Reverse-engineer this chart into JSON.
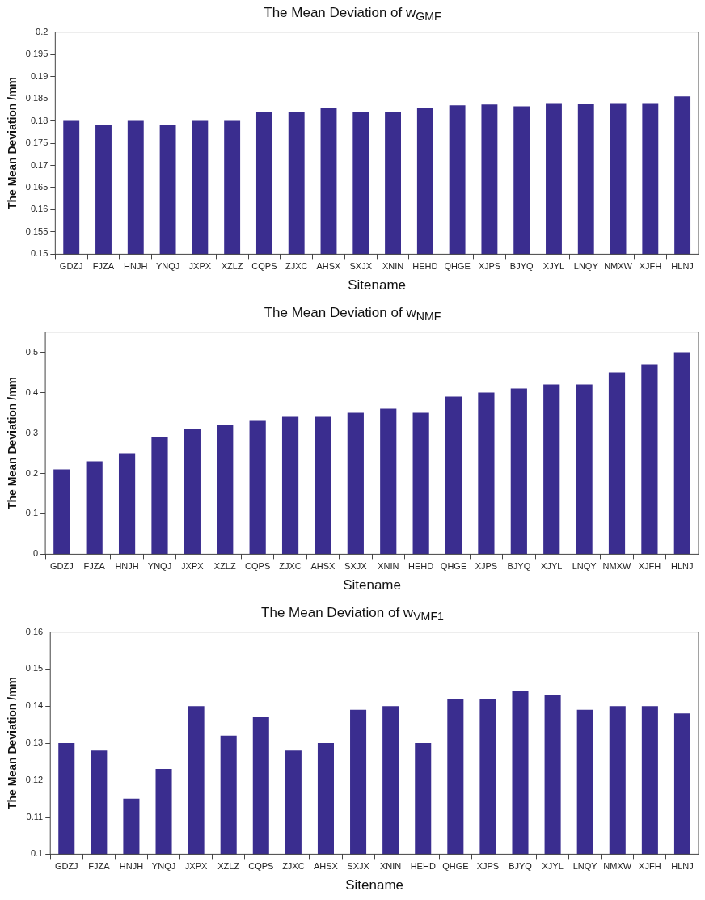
{
  "chart_data": [
    {
      "type": "bar",
      "title": "The Mean Deviation of w$_{GMF}$",
      "xlabel": "Sitename",
      "ylabel": "The Mean Deviation /mm",
      "categories": [
        "GDZJ",
        "FJZA",
        "HNJH",
        "YNQJ",
        "JXPX",
        "XZLZ",
        "CQPS",
        "ZJXC",
        "AHSX",
        "SXJX",
        "XNIN",
        "HEHD",
        "QHGE",
        "XJPS",
        "BJYQ",
        "XJYL",
        "LNQY",
        "NMXW",
        "XJFH",
        "HLNJ"
      ],
      "color": "#3a2d8f",
      "values": [
        0.18,
        0.179,
        0.18,
        0.179,
        0.18,
        0.18,
        0.182,
        0.182,
        0.183,
        0.182,
        0.182,
        0.183,
        0.1835,
        0.1837,
        0.1833,
        0.184,
        0.1838,
        0.184,
        0.184,
        0.1855
      ],
      "ylim": [
        0.15,
        0.2
      ],
      "yticks": [
        {
          "value": 0.15,
          "label": "0.15"
        },
        {
          "value": 0.155,
          "label": "0.155"
        },
        {
          "value": 0.16,
          "label": "0.16"
        },
        {
          "value": 0.165,
          "label": "0.165"
        },
        {
          "value": 0.17,
          "label": "0.17"
        },
        {
          "value": 0.175,
          "label": "0.175"
        },
        {
          "value": 0.18,
          "label": "0.18"
        },
        {
          "value": 0.185,
          "label": "0.185"
        },
        {
          "value": 0.19,
          "label": "0.19"
        },
        {
          "value": 0.195,
          "label": "0.195"
        },
        {
          "value": 0.2,
          "label": "0.2"
        }
      ],
      "grid": false
    },
    {
      "type": "bar",
      "title": "The Mean Deviation of w$_{NMF}$",
      "xlabel": "Sitename",
      "ylabel": "The Mean Deviation /mm",
      "categories": [
        "GDZJ",
        "FJZA",
        "HNJH",
        "YNQJ",
        "JXPX",
        "XZLZ",
        "CQPS",
        "ZJXC",
        "AHSX",
        "SXJX",
        "XNIN",
        "HEHD",
        "QHGE",
        "XJPS",
        "BJYQ",
        "XJYL",
        "LNQY",
        "NMXW",
        "XJFH",
        "HLNJ"
      ],
      "color": "#3a2d8f",
      "values": [
        0.21,
        0.23,
        0.25,
        0.29,
        0.31,
        0.32,
        0.33,
        0.34,
        0.34,
        0.35,
        0.36,
        0.35,
        0.39,
        0.4,
        0.41,
        0.42,
        0.42,
        0.45,
        0.47,
        0.5
      ],
      "ylim": [
        0,
        0.55
      ],
      "yticks": [
        0,
        0.1,
        0.2,
        0.3,
        0.4,
        0.5
      ],
      "grid": false
    },
    {
      "type": "bar",
      "title": "The Mean Deviation of w$_{VMF1}$",
      "xlabel": "Sitename",
      "ylabel": "The Mean Deviation /mm",
      "categories": [
        "GDZJ",
        "FJZA",
        "HNJH",
        "YNQJ",
        "JXPX",
        "XZLZ",
        "CQPS",
        "ZJXC",
        "AHSX",
        "SXJX",
        "XNIN",
        "HEHD",
        "QHGE",
        "XJPS",
        "BJYQ",
        "XJYL",
        "LNQY",
        "NMXW",
        "XJFH",
        "HLNJ"
      ],
      "color": "#3a2d8f",
      "values": [
        0.13,
        0.128,
        0.115,
        0.123,
        0.14,
        0.132,
        0.137,
        0.128,
        0.13,
        0.139,
        0.14,
        0.13,
        0.142,
        0.142,
        0.144,
        0.143,
        0.139,
        0.14,
        0.14,
        0.138
      ],
      "ylim": [
        0.1,
        0.16
      ],
      "yticks": [
        {
          "value": 0.1,
          "label": "0.1"
        },
        {
          "value": 0.11,
          "label": "0.11"
        },
        {
          "value": 0.12,
          "label": "0.12"
        },
        {
          "value": 0.13,
          "label": "0.13"
        },
        {
          "value": 0.14,
          "label": "0.14"
        },
        {
          "value": 0.15,
          "label": "0.15"
        },
        {
          "value": 0.16,
          "label": "0.16"
        }
      ],
      "grid": false
    }
  ]
}
